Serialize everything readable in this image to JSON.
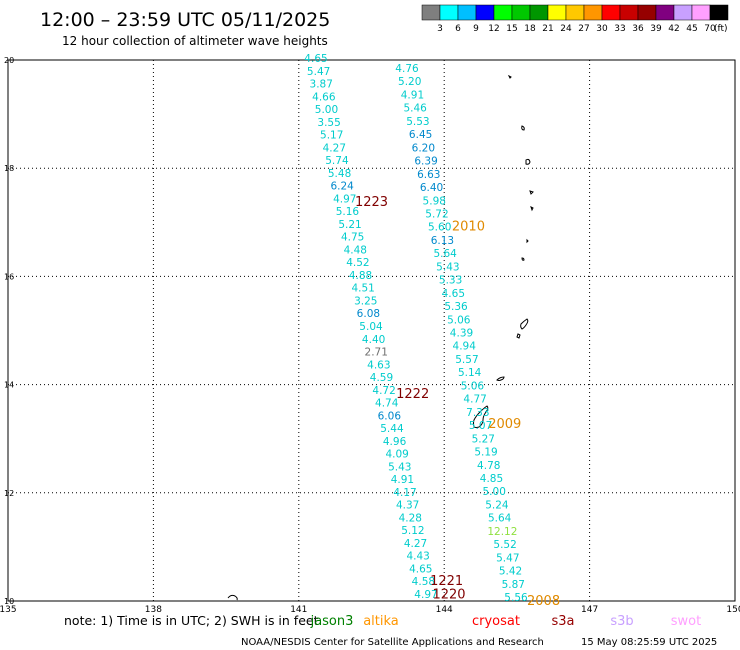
{
  "header": {
    "title": "12:00 – 23:59 UTC 05/11/2025",
    "subtitle": "12 hour collection of altimeter wave heights"
  },
  "legend": {
    "unit": "(ft)",
    "colors": [
      "#7f7f7f",
      "#00ffff",
      "#00bfff",
      "#0000ff",
      "#00ff00",
      "#00c800",
      "#009600",
      "#ffff00",
      "#ffc800",
      "#ff9600",
      "#ff0000",
      "#c80000",
      "#960000",
      "#800080",
      "#c8a0ff",
      "#ffa0ff",
      "#000000"
    ],
    "labels": [
      "3",
      "6",
      "9",
      "12",
      "15",
      "18",
      "21",
      "24",
      "27",
      "30",
      "33",
      "36",
      "39",
      "42",
      "45",
      "70"
    ]
  },
  "axes": {
    "x_ticks": [
      "135",
      "138",
      "141",
      "144",
      "147",
      "150"
    ],
    "y_ticks": [
      "20",
      "18",
      "16",
      "14",
      "12",
      "10"
    ],
    "xlim": [
      135,
      150
    ],
    "ylim": [
      10,
      20
    ]
  },
  "time_labels": [
    {
      "text": "1223",
      "color": "#800000",
      "lon": 142.5,
      "lat": 17.3
    },
    {
      "text": "2010",
      "color": "#e08a00",
      "lon": 144.5,
      "lat": 16.85
    },
    {
      "text": "1222",
      "color": "#800000",
      "lon": 143.35,
      "lat": 13.75
    },
    {
      "text": "2009",
      "color": "#e08a00",
      "lon": 145.25,
      "lat": 13.2
    },
    {
      "text": "1221",
      "color": "#800000",
      "lon": 144.05,
      "lat": 10.3
    },
    {
      "text": "1220",
      "color": "#800000",
      "lon": 144.1,
      "lat": 10.05
    },
    {
      "text": "2008",
      "color": "#e08a00",
      "lon": 146.05,
      "lat": 9.93
    }
  ],
  "tracks": [
    {
      "name": "track-a",
      "points": [
        {
          "v": "4.65",
          "c": "#00cccc"
        },
        {
          "v": "5.47",
          "c": "#00cccc"
        },
        {
          "v": "3.87",
          "c": "#00cccc"
        },
        {
          "v": "4.66",
          "c": "#00cccc"
        },
        {
          "v": "5.00",
          "c": "#00cccc"
        },
        {
          "v": "3.55",
          "c": "#00cccc"
        },
        {
          "v": "5.17",
          "c": "#00cccc"
        },
        {
          "v": "4.27",
          "c": "#00cccc"
        },
        {
          "v": "5.74",
          "c": "#00cccc"
        },
        {
          "v": "5.48",
          "c": "#00cccc"
        },
        {
          "v": "6.24",
          "c": "#0088cc"
        },
        {
          "v": "4.97",
          "c": "#00cccc"
        },
        {
          "v": "5.16",
          "c": "#00cccc"
        },
        {
          "v": "5.21",
          "c": "#00cccc"
        },
        {
          "v": "4.75",
          "c": "#00cccc"
        },
        {
          "v": "4.48",
          "c": "#00cccc"
        },
        {
          "v": "4.52",
          "c": "#00cccc"
        },
        {
          "v": "4.88",
          "c": "#00cccc"
        },
        {
          "v": "4.51",
          "c": "#00cccc"
        },
        {
          "v": "3.25",
          "c": "#00cccc"
        },
        {
          "v": "6.08",
          "c": "#0088cc"
        },
        {
          "v": "5.04",
          "c": "#00cccc"
        },
        {
          "v": "4.40",
          "c": "#00cccc"
        },
        {
          "v": "2.71",
          "c": "#707070"
        },
        {
          "v": "4.63",
          "c": "#00cccc"
        },
        {
          "v": "4.59",
          "c": "#00cccc"
        },
        {
          "v": "4.72",
          "c": "#00cccc"
        },
        {
          "v": "4.74",
          "c": "#00cccc"
        },
        {
          "v": "6.06",
          "c": "#0088cc"
        },
        {
          "v": "5.44",
          "c": "#00cccc"
        },
        {
          "v": "4.96",
          "c": "#00cccc"
        },
        {
          "v": "4.09",
          "c": "#00cccc"
        },
        {
          "v": "5.43",
          "c": "#00cccc"
        },
        {
          "v": "4.91",
          "c": "#00cccc"
        },
        {
          "v": "4.17",
          "c": "#00cccc"
        },
        {
          "v": "4.37",
          "c": "#00cccc"
        },
        {
          "v": "4.28",
          "c": "#00cccc"
        },
        {
          "v": "5.12",
          "c": "#00cccc"
        },
        {
          "v": "4.27",
          "c": "#00cccc"
        },
        {
          "v": "4.43",
          "c": "#00cccc"
        },
        {
          "v": "4.65",
          "c": "#00cccc"
        },
        {
          "v": "4.58",
          "c": "#00cccc"
        },
        {
          "v": "4.97",
          "c": "#00cccc"
        }
      ]
    },
    {
      "name": "track-b",
      "points": [
        {
          "v": "4.76",
          "c": "#00cccc"
        },
        {
          "v": "5.20",
          "c": "#00cccc"
        },
        {
          "v": "4.91",
          "c": "#00cccc"
        },
        {
          "v": "5.46",
          "c": "#00cccc"
        },
        {
          "v": "5.53",
          "c": "#00cccc"
        },
        {
          "v": "6.45",
          "c": "#0088cc"
        },
        {
          "v": "6.20",
          "c": "#0088cc"
        },
        {
          "v": "6.39",
          "c": "#0088cc"
        },
        {
          "v": "6.63",
          "c": "#0088cc"
        },
        {
          "v": "6.40",
          "c": "#0088cc"
        },
        {
          "v": "5.98",
          "c": "#00cccc"
        },
        {
          "v": "5.72",
          "c": "#00cccc"
        },
        {
          "v": "5.60",
          "c": "#00cccc"
        },
        {
          "v": "6.13",
          "c": "#0088cc"
        },
        {
          "v": "5.64",
          "c": "#00cccc"
        },
        {
          "v": "5.43",
          "c": "#00cccc"
        },
        {
          "v": "5.33",
          "c": "#00cccc"
        },
        {
          "v": "4.65",
          "c": "#00cccc"
        },
        {
          "v": "5.36",
          "c": "#00cccc"
        },
        {
          "v": "5.06",
          "c": "#00cccc"
        },
        {
          "v": "4.39",
          "c": "#00cccc"
        },
        {
          "v": "4.94",
          "c": "#00cccc"
        },
        {
          "v": "5.57",
          "c": "#00cccc"
        },
        {
          "v": "5.14",
          "c": "#00cccc"
        },
        {
          "v": "5.06",
          "c": "#00cccc"
        },
        {
          "v": "4.77",
          "c": "#00cccc"
        },
        {
          "v": "7.33",
          "c": "#00cccc"
        },
        {
          "v": "5.07",
          "c": "#00cccc"
        },
        {
          "v": "5.27",
          "c": "#00cccc"
        },
        {
          "v": "5.19",
          "c": "#00cccc"
        },
        {
          "v": "4.78",
          "c": "#00cccc"
        },
        {
          "v": "4.85",
          "c": "#00cccc"
        },
        {
          "v": "5.00",
          "c": "#00cccc"
        },
        {
          "v": "5.24",
          "c": "#00cccc"
        },
        {
          "v": "5.64",
          "c": "#00cccc"
        },
        {
          "v": "12.12",
          "c": "#90e040"
        },
        {
          "v": "5.52",
          "c": "#00cccc"
        },
        {
          "v": "5.47",
          "c": "#00cccc"
        },
        {
          "v": "5.42",
          "c": "#00cccc"
        },
        {
          "v": "5.87",
          "c": "#00cccc"
        },
        {
          "v": "5.56",
          "c": "#00cccc"
        }
      ]
    }
  ],
  "footer": {
    "note": "note:  1) Time is in UTC;  2) SWH is in feet",
    "satellites": [
      {
        "name": "jason3",
        "color": "#008000"
      },
      {
        "name": "altika",
        "color": "#ff9600"
      },
      {
        "name": "cryosat",
        "color": "#ff0000"
      },
      {
        "name": "s3a",
        "color": "#960000"
      },
      {
        "name": "s3b",
        "color": "#c8a0ff"
      },
      {
        "name": "swot",
        "color": "#ffa0ff"
      }
    ],
    "credit": "NOAA/NESDIS Center for Satellite Applications and Research",
    "generated": "15 May 08:25:59 UTC 2025"
  }
}
